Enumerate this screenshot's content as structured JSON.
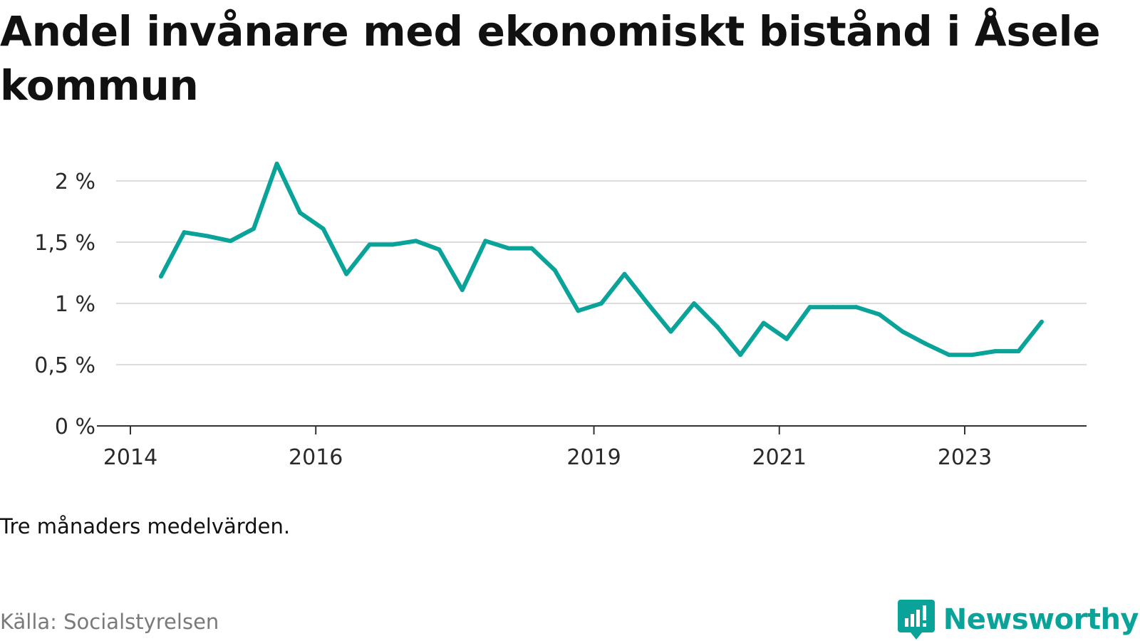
{
  "title": "Andel invånare med ekonomiskt bistånd i Åsele kommun",
  "note": "Tre månaders medelvärden.",
  "source": "Källa: Socialstyrelsen",
  "brand": {
    "name": "Newsworthy",
    "icon": "newsworthy-logo-icon",
    "color": "#0aa39a"
  },
  "chart_data": {
    "type": "line",
    "title": "Andel invånare med ekonomiskt bistånd i Åsele kommun",
    "xlabel": "",
    "ylabel": "",
    "ylim": [
      0,
      2.2
    ],
    "grid": true,
    "legend": "none",
    "color": "#0aa39a",
    "y_ticks": [
      {
        "value": 0,
        "label": "0 %"
      },
      {
        "value": 0.5,
        "label": "0,5 %"
      },
      {
        "value": 1,
        "label": "1 %"
      },
      {
        "value": 1.5,
        "label": "1,5 %"
      },
      {
        "value": 2,
        "label": "2 %"
      }
    ],
    "x_ticks": [
      {
        "value": 2014.0,
        "label": "2014"
      },
      {
        "value": 2016.0,
        "label": "2016"
      },
      {
        "value": 2019.0,
        "label": "2019"
      },
      {
        "value": 2021.0,
        "label": "2021"
      },
      {
        "value": 2023.0,
        "label": "2023"
      }
    ],
    "series": [
      {
        "x": [
          2014.33,
          2014.58,
          2014.83,
          2015.08,
          2015.33,
          2015.58,
          2015.83,
          2016.08,
          2016.33,
          2016.58,
          2016.83,
          2017.08,
          2017.33,
          2017.58,
          2017.83,
          2018.08,
          2018.33,
          2018.58,
          2018.83,
          2019.08,
          2019.33,
          2019.58,
          2019.83,
          2020.08,
          2020.33,
          2020.58,
          2020.83,
          2021.08,
          2021.33,
          2021.58,
          2021.83,
          2022.08,
          2022.33,
          2022.58,
          2022.83,
          2023.08,
          2023.33,
          2023.58,
          2023.83
        ],
        "values": [
          1.22,
          1.58,
          1.55,
          1.51,
          1.61,
          2.14,
          1.74,
          1.61,
          1.24,
          1.48,
          1.48,
          1.51,
          1.44,
          1.11,
          1.51,
          1.45,
          1.45,
          1.27,
          0.94,
          1.0,
          1.24,
          1.0,
          0.77,
          1.0,
          0.81,
          0.58,
          0.84,
          0.71,
          0.97,
          0.97,
          0.97,
          0.91,
          0.77,
          0.67,
          0.58,
          0.58,
          0.61,
          0.61,
          0.85
        ]
      }
    ]
  }
}
